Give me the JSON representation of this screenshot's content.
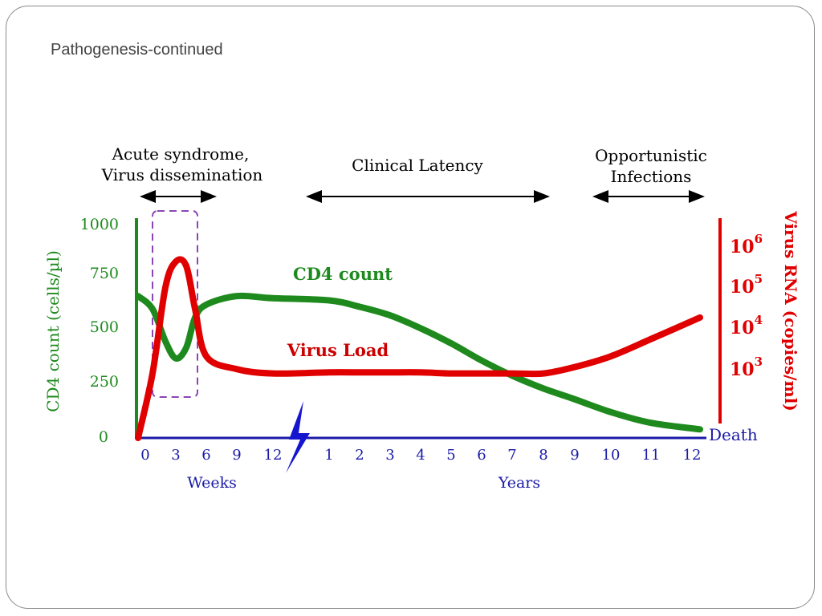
{
  "slide": {
    "title": "Pathogenesis-continued"
  },
  "chart_data": {
    "type": "line",
    "phases": [
      {
        "label_lines": [
          "Acute syndrome,",
          "Virus dissemination"
        ]
      },
      {
        "label_lines": [
          "Clinical Latency"
        ]
      },
      {
        "label_lines": [
          "Opportunistic",
          "Infections"
        ]
      }
    ],
    "x_ticks": [
      "0",
      "3",
      "6",
      "9",
      "12",
      "1",
      "2",
      "3",
      "4",
      "5",
      "6",
      "7",
      "8",
      "9",
      "10",
      "11",
      "12"
    ],
    "x_units": {
      "weeks": "Weeks",
      "years": "Years"
    },
    "y_left": {
      "label": "CD4 count (cells/µl)",
      "ticks": [
        "1000",
        "750",
        "500",
        "250",
        "0"
      ],
      "range": [
        0,
        1000
      ]
    },
    "y_right": {
      "label": "Virus RNA (copies/ml)",
      "ticks": [
        {
          "base": "10",
          "exp": "6"
        },
        {
          "base": "10",
          "exp": "5"
        },
        {
          "base": "10",
          "exp": "4"
        },
        {
          "base": "10",
          "exp": "3"
        }
      ]
    },
    "series": [
      {
        "name": "CD4 count",
        "color": "#1e8a1e",
        "x": [
          "0 wk",
          "1 wk",
          "2 wk",
          "3 wk",
          "4 wk",
          "5 wk",
          "6 wk",
          "9 wk",
          "12 wk",
          "1 yr",
          "2 yr",
          "3 yr",
          "4 yr",
          "5 yr",
          "6 yr",
          "7 yr",
          "8 yr",
          "9 yr",
          "10 yr",
          "11 yr",
          "12 yr"
        ],
        "values": [
          660,
          600,
          450,
          370,
          420,
          560,
          620,
          660,
          650,
          640,
          610,
          570,
          510,
          440,
          360,
          290,
          230,
          180,
          120,
          70,
          40
        ]
      },
      {
        "name": "Virus Load",
        "color": "#e00000",
        "x": [
          "0 wk",
          "1 wk",
          "2 wk",
          "3 wk",
          "4 wk",
          "5 wk",
          "6 wk",
          "9 wk",
          "12 wk",
          "1 yr",
          "2 yr",
          "3 yr",
          "4 yr",
          "5 yr",
          "6 yr",
          "7 yr",
          "8 yr",
          "9 yr",
          "10 yr",
          "11 yr",
          "12 yr"
        ],
        "values": [
          0,
          300,
          700,
          820,
          800,
          600,
          380,
          320,
          300,
          305,
          305,
          305,
          305,
          300,
          300,
          300,
          300,
          330,
          380,
          460,
          560
        ]
      }
    ],
    "end_label": "Death"
  }
}
